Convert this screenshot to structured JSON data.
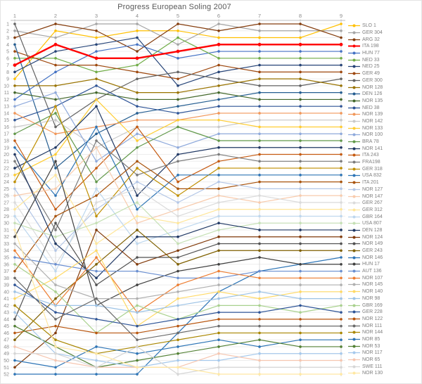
{
  "title": "Progress European Soling 2007",
  "chart_data": {
    "type": "line",
    "subtype": "bump-rank-progress",
    "title": "Progress European Soling 2007",
    "xlabel": "",
    "ylabel": "",
    "x": [
      1,
      2,
      3,
      4,
      5,
      6,
      7,
      8,
      9
    ],
    "x_tick_labels": [
      "1",
      "2",
      "3",
      "4",
      "5",
      "6",
      "7",
      "8",
      "9"
    ],
    "y_axis": {
      "min": 1,
      "max": 52,
      "inverted": true,
      "tick_step": 1
    },
    "grid": true,
    "legend_position": "right",
    "series": [
      {
        "name": "SLO 1",
        "color": "#FFC000",
        "positions": [
          9,
          2,
          3,
          2,
          2,
          3,
          3,
          3,
          1
        ]
      },
      {
        "name": "GER 304",
        "color": "#A5A5A5",
        "positions": [
          2,
          3,
          1,
          1,
          4,
          1,
          2,
          2,
          2
        ]
      },
      {
        "name": "ARG 32",
        "color": "#843C0C",
        "positions": [
          3,
          1,
          2,
          5,
          1,
          2,
          1,
          1,
          3
        ]
      },
      {
        "name": "ITA 198",
        "color": "#FF0000",
        "positions": [
          7,
          4,
          6,
          6,
          5,
          4,
          4,
          4,
          4
        ],
        "emphasis": true
      },
      {
        "name": "HUN 77",
        "color": "#4472C4",
        "positions": [
          12,
          8,
          5,
          4,
          6,
          5,
          5,
          5,
          5
        ]
      },
      {
        "name": "NED 33",
        "color": "#70AD47",
        "positions": [
          6,
          6,
          8,
          7,
          3,
          6,
          6,
          6,
          6
        ]
      },
      {
        "name": "NED 25",
        "color": "#264478",
        "positions": [
          8,
          5,
          4,
          3,
          10,
          8,
          7,
          7,
          7
        ]
      },
      {
        "name": "GER 49",
        "color": "#9E480E",
        "positions": [
          5,
          7,
          7,
          8,
          9,
          7,
          8,
          8,
          8
        ]
      },
      {
        "name": "GER 300",
        "color": "#636363",
        "positions": [
          1,
          16,
          12,
          9,
          8,
          9,
          10,
          10,
          9
        ]
      },
      {
        "name": "NOR 128",
        "color": "#997300",
        "positions": [
          10,
          10,
          9,
          11,
          11,
          10,
          9,
          9,
          10
        ]
      },
      {
        "name": "DEN 126",
        "color": "#255E91",
        "positions": [
          4,
          22,
          17,
          14,
          13,
          12,
          11,
          11,
          11
        ]
      },
      {
        "name": "NOR 135",
        "color": "#43682B",
        "positions": [
          11,
          12,
          11,
          12,
          12,
          11,
          12,
          12,
          12
        ]
      },
      {
        "name": "NED 38",
        "color": "#2F5597",
        "positions": [
          15,
          13,
          10,
          13,
          14,
          13,
          13,
          13,
          13
        ]
      },
      {
        "name": "NOR 139",
        "color": "#F1975A",
        "positions": [
          14,
          17,
          16,
          15,
          15,
          14,
          14,
          14,
          14
        ]
      },
      {
        "name": "NOR 142",
        "color": "#C9C9C9",
        "positions": [
          16,
          15,
          19,
          16,
          16,
          16,
          15,
          15,
          15
        ]
      },
      {
        "name": "NOR 133",
        "color": "#FFCD33",
        "positions": [
          23,
          20,
          12,
          18,
          15,
          15,
          16,
          16,
          16
        ]
      },
      {
        "name": "NOR 100",
        "color": "#8FAADC",
        "positions": [
          13,
          11,
          21,
          17,
          19,
          17,
          17,
          17,
          17
        ]
      },
      {
        "name": "BRA 78",
        "color": "#62994B",
        "positions": [
          17,
          14,
          24,
          19,
          16,
          18,
          18,
          18,
          18
        ]
      },
      {
        "name": "NOR 141",
        "color": "#203864",
        "positions": [
          22,
          19,
          13,
          26,
          20,
          19,
          19,
          19,
          19
        ]
      },
      {
        "name": "ITA 243",
        "color": "#C55A11",
        "positions": [
          18,
          28,
          22,
          16,
          24,
          21,
          20,
          20,
          20
        ]
      },
      {
        "name": "FRA198",
        "color": "#7B7B7B",
        "positions": [
          21,
          31,
          18,
          23,
          21,
          20,
          21,
          21,
          21
        ]
      },
      {
        "name": "GER 318",
        "color": "#BF8F00",
        "positions": [
          24,
          13,
          29,
          22,
          26,
          22,
          22,
          22,
          22
        ]
      },
      {
        "name": "USA 832",
        "color": "#2E75B6",
        "positions": [
          19,
          26,
          16,
          28,
          23,
          23,
          23,
          23,
          23
        ]
      },
      {
        "name": "ITA 201",
        "color": "#A9540D",
        "positions": [
          37,
          29,
          26,
          21,
          25,
          25,
          24,
          24,
          24
        ]
      },
      {
        "name": "NOR 127",
        "color": "#B4C7E7",
        "positions": [
          25,
          34,
          28,
          24,
          27,
          24,
          25,
          25,
          25
        ]
      },
      {
        "name": "NOR 147",
        "color": "#F8CBAD",
        "positions": [
          26,
          25,
          19,
          30,
          28,
          26,
          27,
          26,
          26
        ]
      },
      {
        "name": "GER 267",
        "color": "#DBDBDB",
        "positions": [
          27,
          36,
          27,
          25,
          29,
          27,
          26,
          27,
          27
        ]
      },
      {
        "name": "GER 312",
        "color": "#FFE699",
        "positions": [
          28,
          23,
          33,
          29,
          30,
          28,
          28,
          28,
          28
        ]
      },
      {
        "name": "GBR 164",
        "color": "#BDD7EE",
        "positions": [
          29,
          37,
          25,
          33,
          31,
          29,
          29,
          29,
          29
        ]
      },
      {
        "name": "USA 807",
        "color": "#C5E0B4",
        "positions": [
          30,
          32,
          30,
          27,
          33,
          31,
          30,
          30,
          30
        ]
      },
      {
        "name": "DEN 128",
        "color": "#203864",
        "positions": [
          20,
          33,
          38,
          32,
          32,
          30,
          31,
          31,
          31
        ]
      },
      {
        "name": "NOR 124",
        "color": "#823B0B",
        "positions": [
          51,
          46,
          31,
          36,
          34,
          32,
          32,
          32,
          32
        ]
      },
      {
        "name": "NOR 149",
        "color": "#525252",
        "positions": [
          44,
          30,
          39,
          35,
          35,
          33,
          33,
          33,
          33
        ]
      },
      {
        "name": "GER 243",
        "color": "#7F6000",
        "positions": [
          47,
          41,
          36,
          31,
          36,
          34,
          34,
          34,
          34
        ]
      },
      {
        "name": "NOR 146",
        "color": "#2E75B6",
        "positions": [
          52,
          52,
          52,
          52,
          46,
          40,
          37,
          36,
          35
        ]
      },
      {
        "name": "HUN 17",
        "color": "#404040",
        "positions": [
          32,
          21,
          42,
          39,
          37,
          36,
          35,
          36,
          36
        ]
      },
      {
        "name": "AUT 136",
        "color": "#698ED0",
        "positions": [
          35,
          36,
          37,
          37,
          38,
          38,
          37,
          37,
          37
        ]
      },
      {
        "name": "NOR 107",
        "color": "#ED7D31",
        "positions": [
          34,
          42,
          35,
          43,
          39,
          37,
          38,
          38,
          38
        ]
      },
      {
        "name": "NOR 145",
        "color": "#B0B0B0",
        "positions": [
          33,
          39,
          41,
          41,
          40,
          39,
          39,
          39,
          39
        ]
      },
      {
        "name": "NOR 140",
        "color": "#FFD966",
        "positions": [
          41,
          38,
          34,
          45,
          41,
          40,
          41,
          40,
          40
        ]
      },
      {
        "name": "NOR 98",
        "color": "#9DC3E6",
        "positions": [
          40,
          42,
          42,
          43,
          42,
          41,
          40,
          41,
          41
        ]
      },
      {
        "name": "GBR 169",
        "color": "#A9D18E",
        "positions": [
          36,
          40,
          46,
          42,
          44,
          42,
          42,
          43,
          42
        ]
      },
      {
        "name": "GER 228",
        "color": "#2F5597",
        "positions": [
          39,
          43,
          44,
          45,
          44,
          43,
          43,
          42,
          43
        ]
      },
      {
        "name": "NOR 122",
        "color": "#B8560F",
        "positions": [
          46,
          45,
          46,
          46,
          45,
          44,
          44,
          44,
          44
        ]
      },
      {
        "name": "NOR 111",
        "color": "#6B6B6B",
        "positions": [
          38,
          44,
          41,
          47,
          46,
          45,
          45,
          45,
          45
        ]
      },
      {
        "name": "NOR 144",
        "color": "#A98600",
        "positions": [
          42,
          47,
          49,
          48,
          47,
          46,
          46,
          46,
          46
        ]
      },
      {
        "name": "NOR 85",
        "color": "#2E75B6",
        "positions": [
          50,
          51,
          48,
          49,
          48,
          47,
          48,
          47,
          47
        ]
      },
      {
        "name": "NOR 53",
        "color": "#538135",
        "positions": [
          45,
          48,
          51,
          50,
          49,
          48,
          47,
          48,
          48
        ]
      },
      {
        "name": "NOR 117",
        "color": "#A6C9EC",
        "positions": [
          43,
          49,
          50,
          51,
          50,
          50,
          49,
          49,
          49
        ]
      },
      {
        "name": "NOR 65",
        "color": "#F6C6B0",
        "positions": [
          48,
          50,
          51,
          51,
          51,
          49,
          50,
          50,
          50
        ]
      },
      {
        "name": "SWE 111",
        "color": "#D6D6D6",
        "positions": [
          49,
          49,
          51,
          48,
          52,
          51,
          51,
          51,
          51
        ]
      },
      {
        "name": "NOR 130",
        "color": "#FFE8A3",
        "positions": [
          31,
          48,
          49,
          51,
          51,
          52,
          52,
          52,
          52
        ]
      }
    ]
  }
}
